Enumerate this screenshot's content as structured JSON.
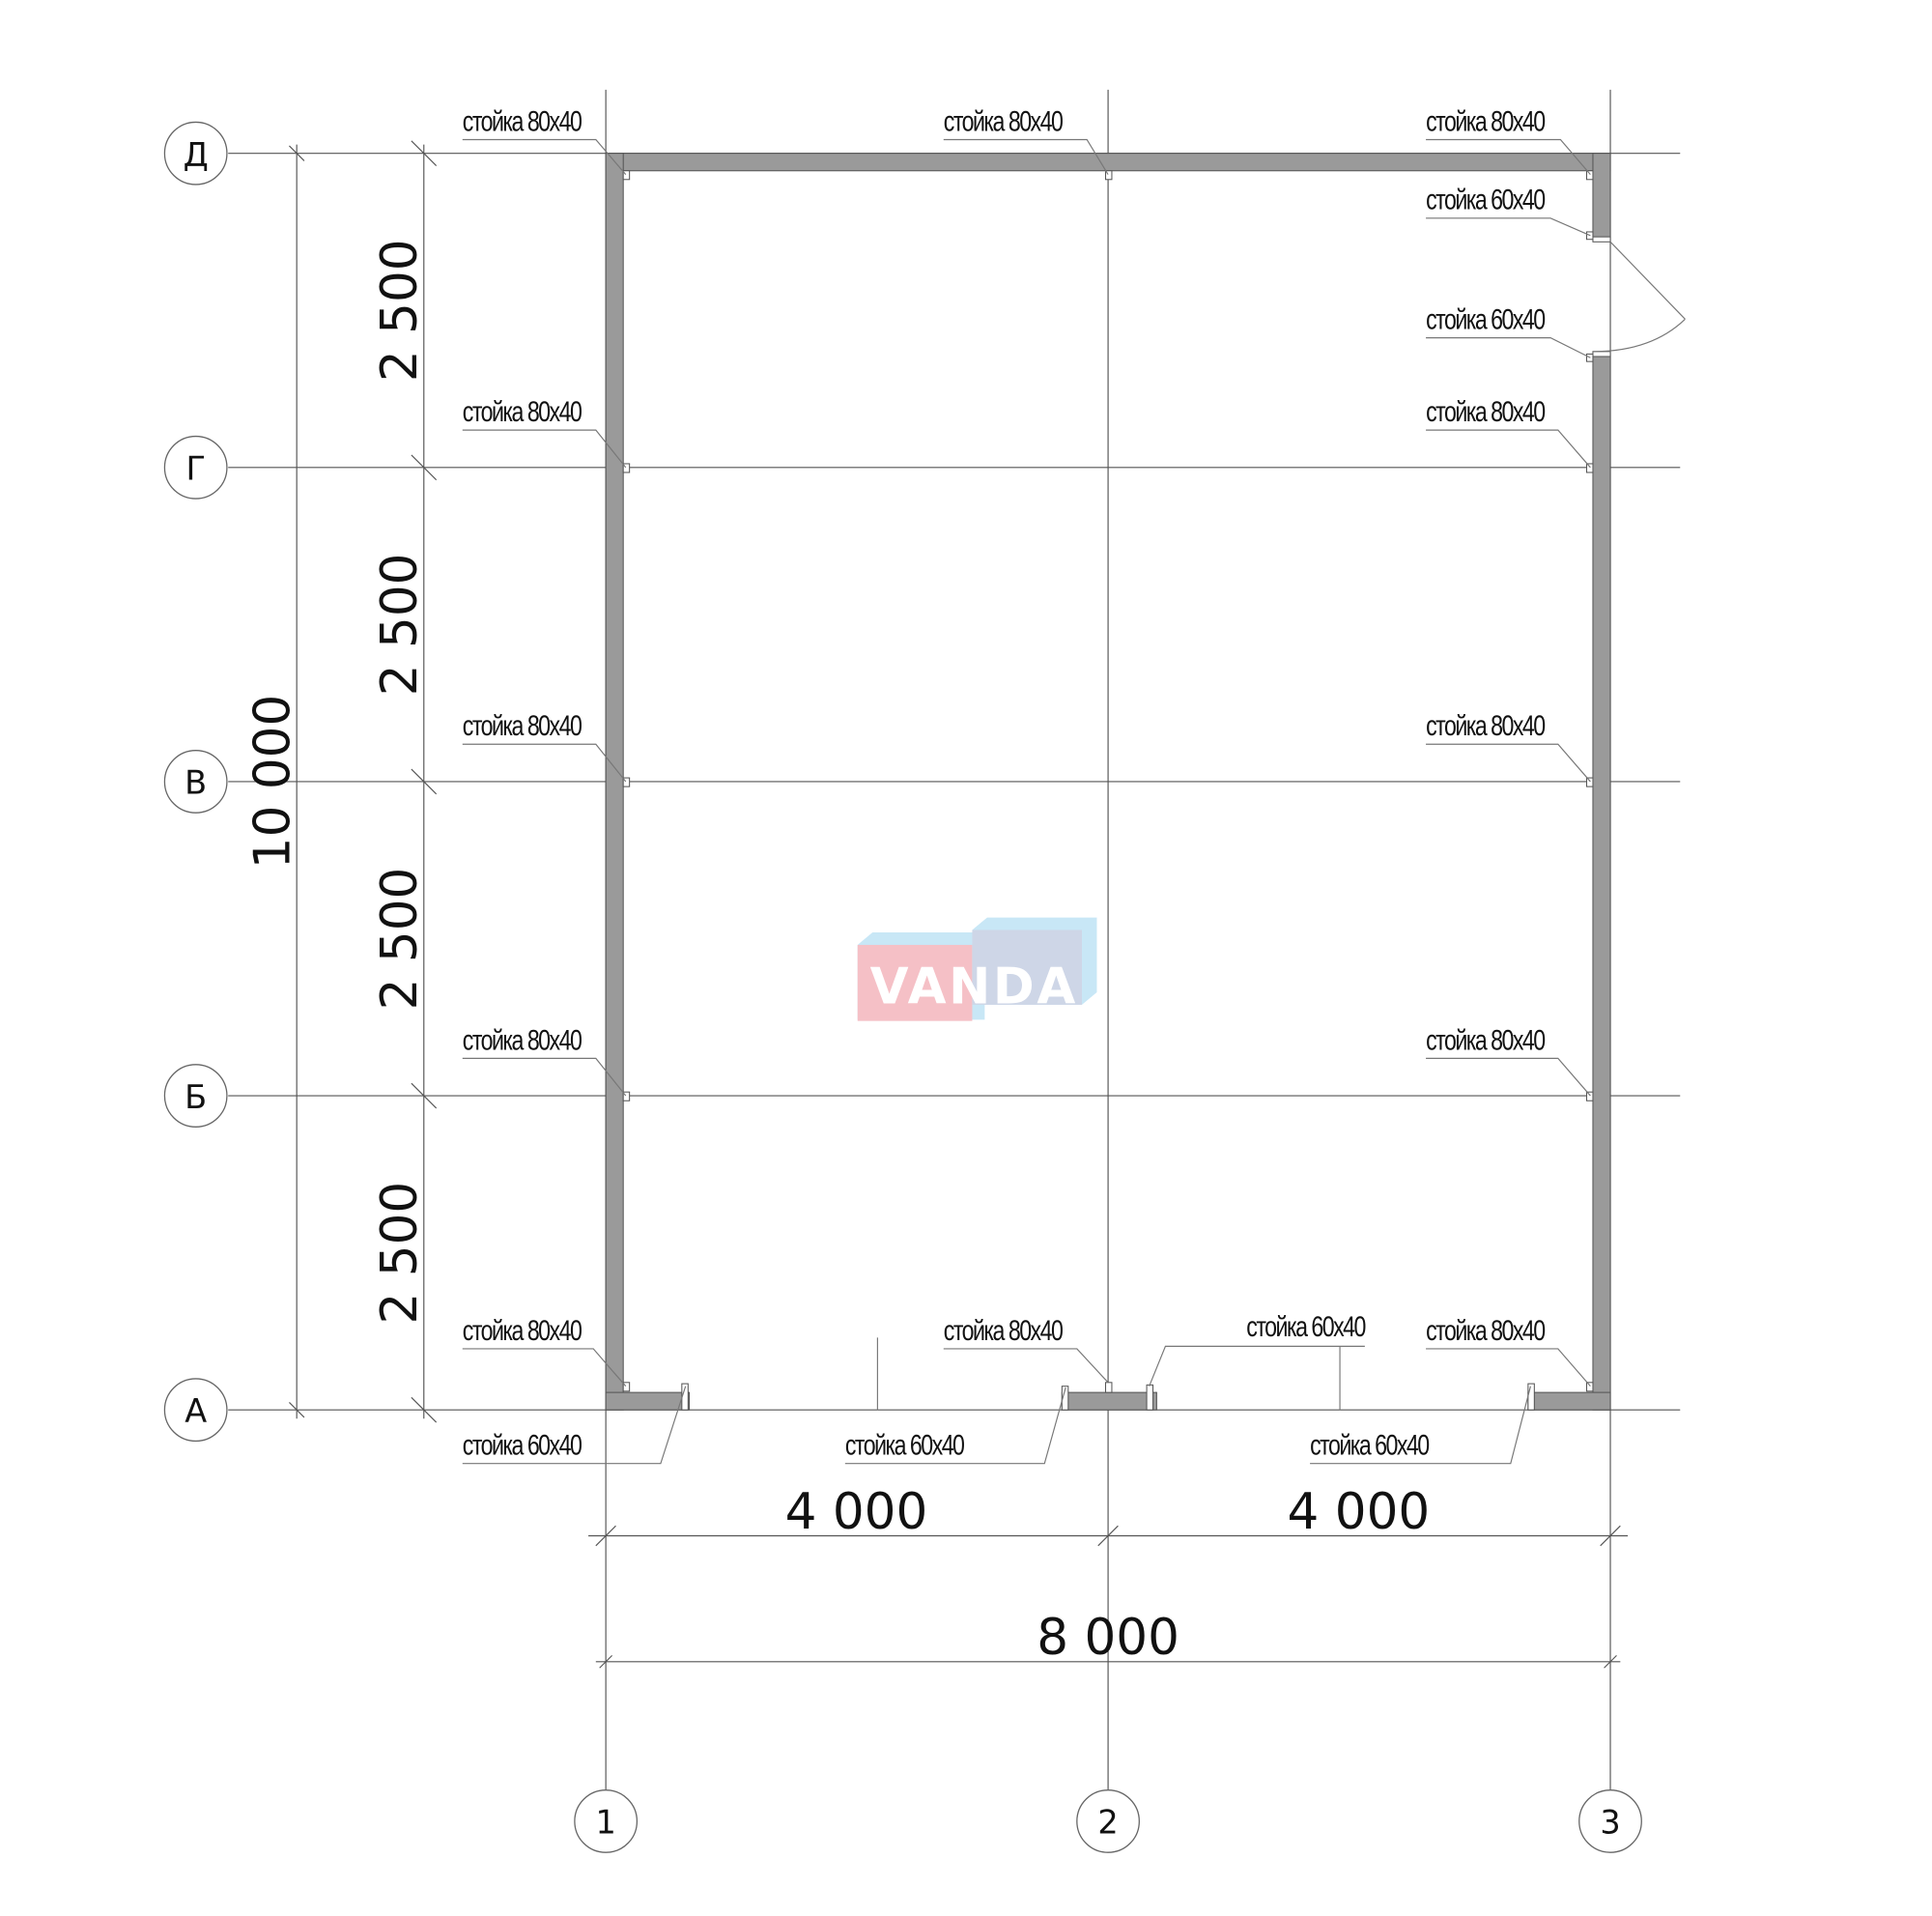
{
  "plan": {
    "row_axes": [
      "Д",
      "Г",
      "В",
      "Б",
      "А"
    ],
    "column_axes": [
      "1",
      "2",
      "3"
    ],
    "dimensions": {
      "vertical_spans": [
        "2 500",
        "2 500",
        "2 500",
        "2 500"
      ],
      "vertical_total": "10 000",
      "horizontal_spans": [
        "4 000",
        "4 000"
      ],
      "horizontal_total": "8 000"
    },
    "post_labels": [
      "стойка 80x40",
      "стойка 80x40",
      "стойка 80x40",
      "стойка 60x40",
      "стойка 60x40",
      "стойка 80x40",
      "стойка 80x40",
      "стойка 80x40",
      "стойка 80x40",
      "стойка 80x40",
      "стойка 80x40",
      "стойка 80x40",
      "стойка 80x40",
      "стойка 80x40",
      "стойка 60x40",
      "стойка 60x40",
      "стойка 60x40",
      "стойка 60x40"
    ],
    "wall_color": "#9a9a9a"
  },
  "watermark": {
    "text": "VANDA",
    "colors": {
      "pink": "#f4b6bd",
      "blue": "#bfe3f5"
    }
  }
}
